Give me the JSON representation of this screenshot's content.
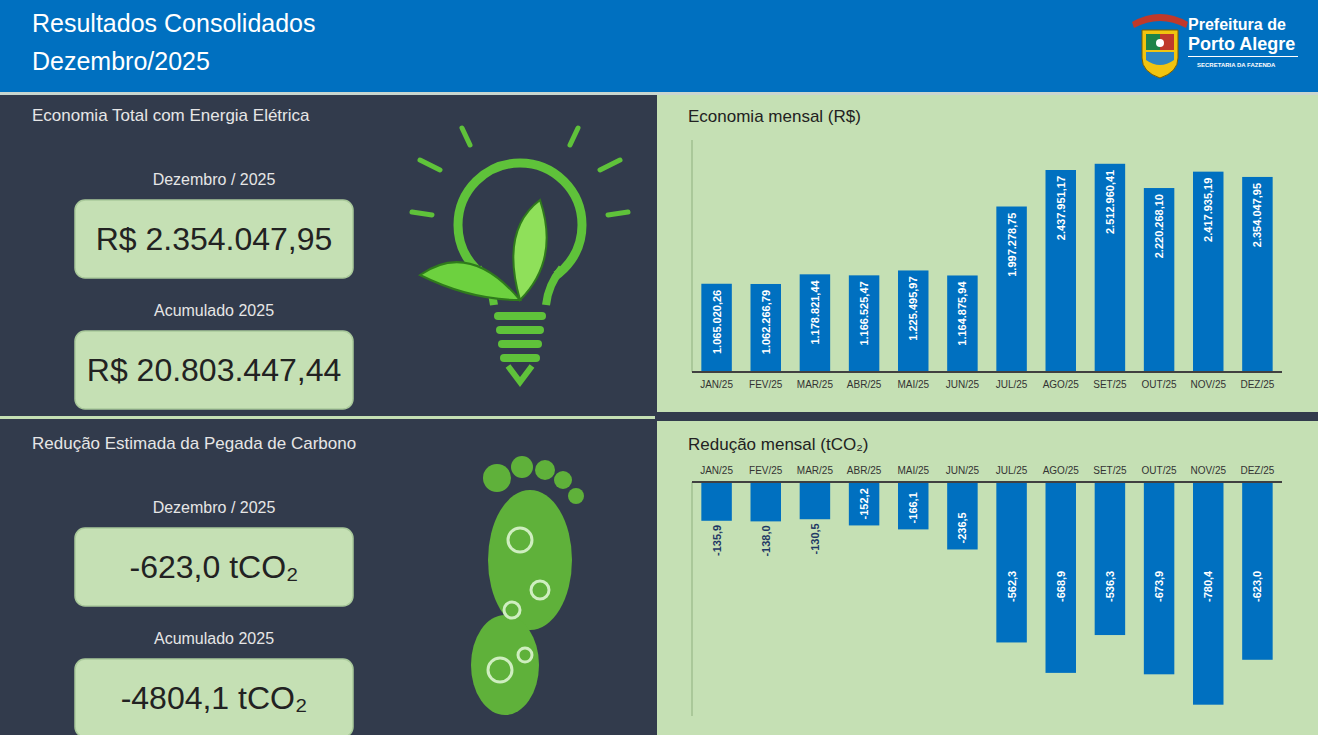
{
  "header": {
    "title": [
      "Resultados Consolidados",
      "Dezembro/2025"
    ],
    "logo": [
      "Prefeitura de",
      "Porto Alegre",
      "SECRETARIA DA FAZENDA"
    ]
  },
  "panels": [
    {
      "title": "Economia Total com Energia Elétrica",
      "items": [
        {
          "label": "Dezembro / 2025",
          "value": "R$ 2.354.047,95"
        },
        {
          "label": "Acumulado 2025",
          "value": "R$ 20.803.447,44"
        }
      ]
    },
    {
      "title": "Redução Estimada da Pegada de Carbono",
      "items": [
        {
          "label": "Dezembro / 2025",
          "value": "-623,0 tCO₂"
        },
        {
          "label": "Acumulado 2025",
          "value": "-4804,1 tCO₂"
        }
      ]
    }
  ],
  "chart_data": [
    {
      "type": "bar",
      "title": "Economia mensal (R$)",
      "categories": [
        "JAN/25",
        "FEV/25",
        "MAR/25",
        "ABR/25",
        "MAI/25",
        "JUN/25",
        "JUL/25",
        "AGO/25",
        "SET/25",
        "OUT/25",
        "NOV/25",
        "DEZ/25"
      ],
      "values": [
        1065020.26,
        1062266.79,
        1178821.44,
        1166525.47,
        1225495.97,
        1164875.94,
        1997278.75,
        2437951.17,
        2512960.41,
        2220268.1,
        2417935.19,
        2354047.95
      ],
      "value_labels": [
        "1.065.020,26",
        "1.062.266,79",
        "1.178.821,44",
        "1.166.525,47",
        "1.225.495,97",
        "1.164.875,94",
        "1.997.278,75",
        "2.437.951,17",
        "2.512.960,41",
        "2.220.268,10",
        "2.417.935,19",
        "2.354.047,95"
      ],
      "color": "#0070c0",
      "ylim": [
        0,
        2800000
      ],
      "data_labels": true,
      "tick_labels": "x",
      "grid": false
    },
    {
      "type": "bar",
      "title": "Redução mensal (tCO₂)",
      "categories": [
        "JAN/25",
        "FEV/25",
        "MAR/25",
        "ABR/25",
        "MAI/25",
        "JUN/25",
        "JUL/25",
        "AGO/25",
        "SET/25",
        "OUT/25",
        "NOV/25",
        "DEZ/25"
      ],
      "values": [
        -135.9,
        -138.0,
        -130.5,
        -152.2,
        -166.1,
        -236.5,
        -562.3,
        -668.9,
        -536.3,
        -673.9,
        -780.4,
        -623.0
      ],
      "value_labels": [
        "-135,9",
        "-138,0",
        "-130,5",
        "-152,2",
        "-166,1",
        "-236,5",
        "-562,3",
        "-668,9",
        "-536,3",
        "-673,9",
        "-780,4",
        "-623,0"
      ],
      "color": "#0070c0",
      "ylim": [
        -820,
        0
      ],
      "data_labels": true,
      "tick_labels": "x",
      "grid": false
    }
  ]
}
